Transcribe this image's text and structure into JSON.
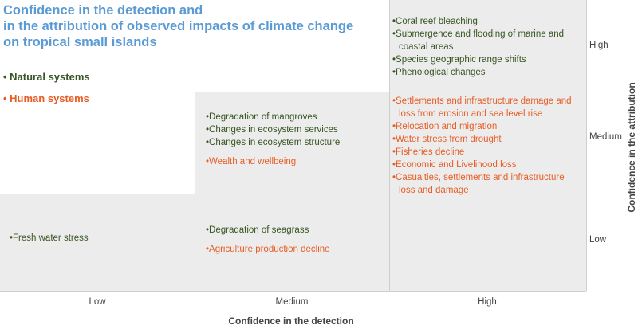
{
  "title": {
    "lines": [
      "Confidence in the detection and",
      "in the attribution of observed impacts of climate change",
      "on tropical small islands"
    ]
  },
  "legend": {
    "natural": "• Natural systems",
    "human": "• Human systems"
  },
  "colors": {
    "natural": "#375623",
    "human": "#e85d25",
    "title": "#5b9bd5",
    "cell": "#ececec"
  },
  "x_axis": {
    "title": "Confidence in the detection",
    "ticks": [
      "Low",
      "Medium",
      "High"
    ]
  },
  "y_axis": {
    "title": "Confidence in the attribution",
    "ticks": [
      "High",
      "Medium",
      "Low"
    ]
  },
  "cells": {
    "high_high": {
      "natural": [
        "Coral reef bleaching",
        "Submergence and flooding of marine and coastal areas",
        "Species geographic range shifts",
        "Phenological changes"
      ]
    },
    "medium_medium": {
      "natural": [
        "Degradation of mangroves",
        "Changes in ecosystem services",
        "Changes in ecosystem structure"
      ],
      "human": [
        "Wealth and wellbeing"
      ]
    },
    "high_medium": {
      "human": [
        "Settlements and infrastructure damage and loss from erosion and sea level rise",
        "Relocation and migration",
        "Water stress from drought",
        "Fisheries decline",
        "Economic and Livelihood loss",
        "Casualties, settlements and infrastructure loss and damage"
      ]
    },
    "low_low": {
      "natural": [
        "Fresh water stress"
      ]
    },
    "medium_low": {
      "natural": [
        "Degradation of seagrass"
      ],
      "human": [
        "Agriculture production decline"
      ]
    }
  }
}
